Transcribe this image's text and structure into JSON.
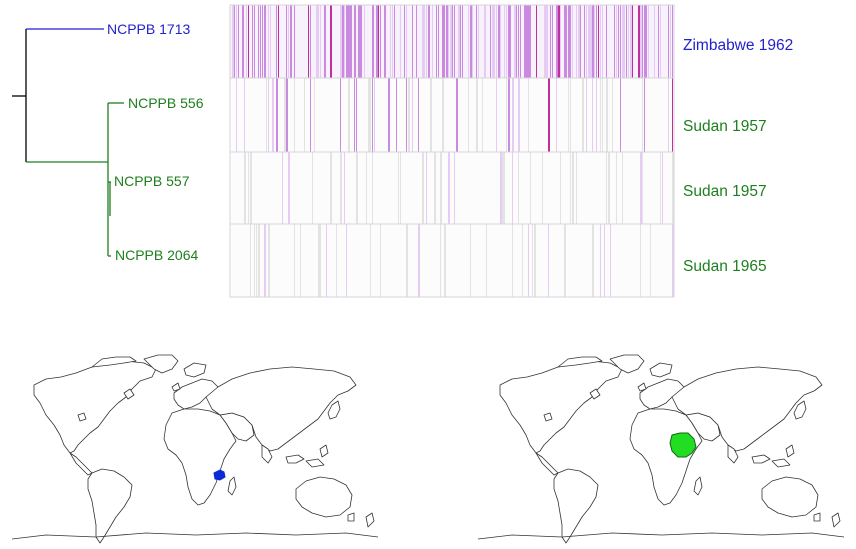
{
  "colors": {
    "blue_clade": "#2222cc",
    "green_clade": "#1e7f1e",
    "branch_root": "#000000",
    "heat_strong": "#c0309a",
    "heat_medium": "#c98ae0",
    "heat_light": "#e6ccf4",
    "heat_grey": "#e3e3e3",
    "heat_border": "#d6d6d6",
    "zimbabwe_fill": "#0a2ad6",
    "sudan_fill": "#22dd22",
    "land_stroke": "#333333"
  },
  "tree": {
    "leaves": [
      {
        "label": "NCPPB 1713",
        "clade": "blue"
      },
      {
        "label": "NCPPB 556",
        "clade": "green"
      },
      {
        "label": "NCPPB 557",
        "clade": "green"
      },
      {
        "label": "NCPPB 2064",
        "clade": "green"
      }
    ]
  },
  "heatmap": {
    "rows": 4,
    "row_intensity": [
      "high",
      "medium",
      "low",
      "low"
    ]
  },
  "locations": [
    {
      "label": "Zimbabwe 1962",
      "clade": "blue"
    },
    {
      "label": "Sudan 1957",
      "clade": "green"
    },
    {
      "label": "Sudan 1957",
      "clade": "green"
    },
    {
      "label": "Sudan 1965",
      "clade": "green"
    }
  ],
  "maps": [
    {
      "highlight": "Zimbabwe",
      "icon": "world-map-icon"
    },
    {
      "highlight": "Sudan",
      "icon": "world-map-icon"
    }
  ]
}
